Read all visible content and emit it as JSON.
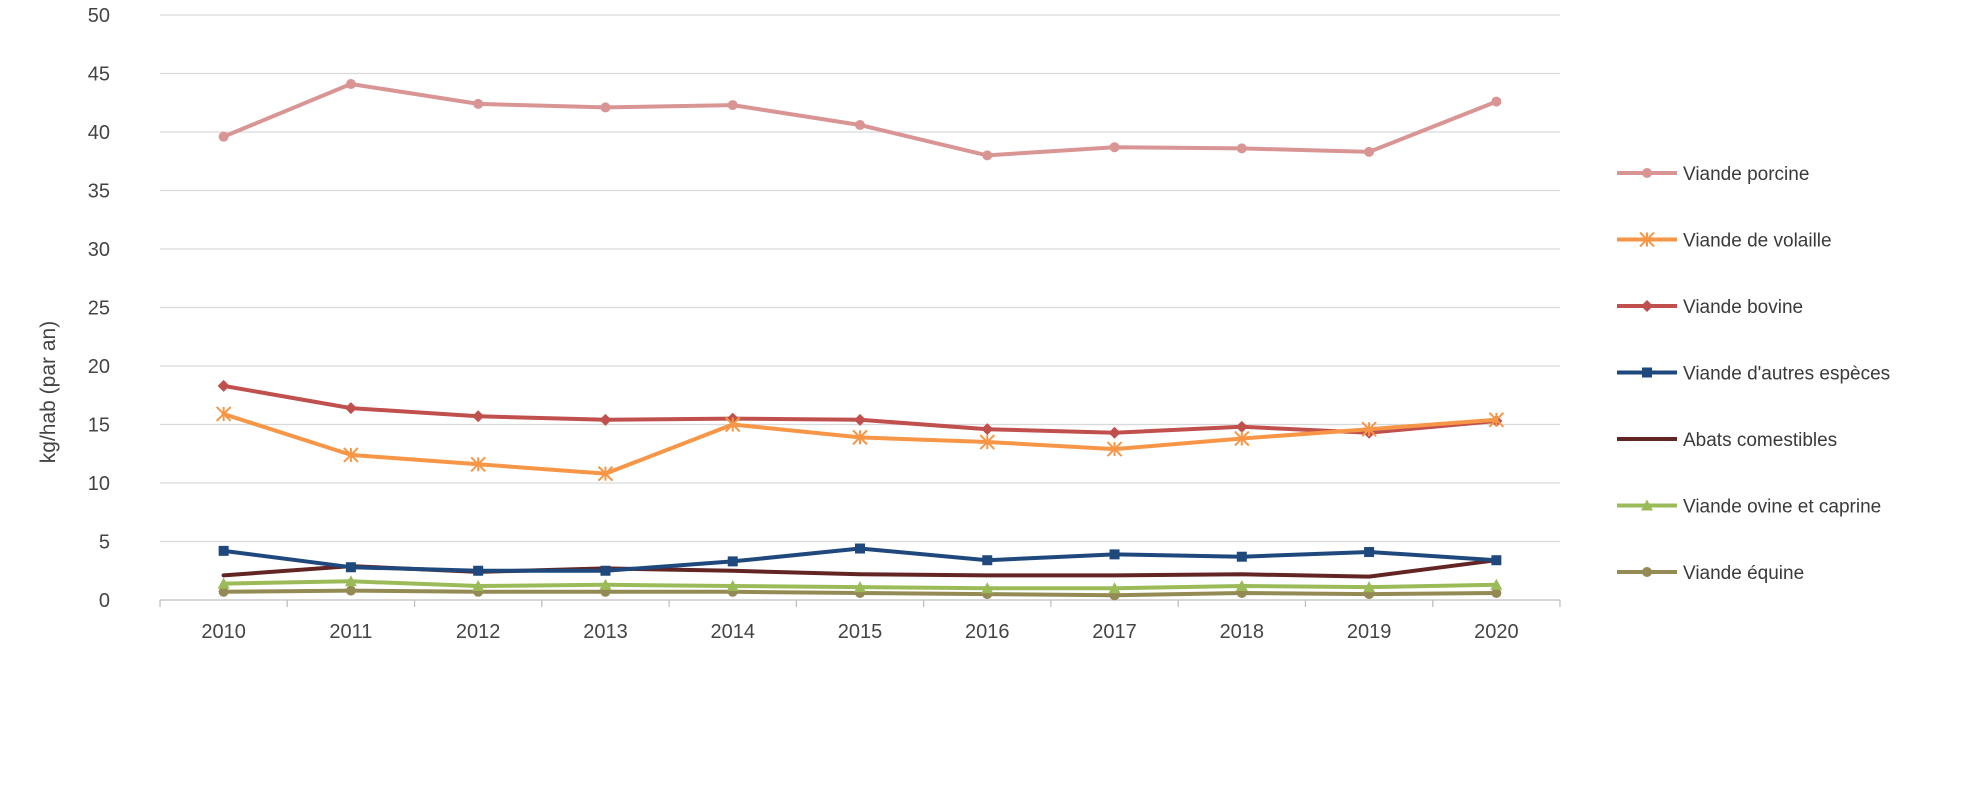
{
  "chart_data": {
    "type": "line",
    "title": "",
    "xlabel": "",
    "ylabel": "kg/hab (par an)",
    "ylim": [
      0,
      50
    ],
    "y_ticks": [
      0,
      5,
      10,
      15,
      20,
      25,
      30,
      35,
      40,
      45,
      50
    ],
    "categories": [
      "2010",
      "2011",
      "2012",
      "2013",
      "2014",
      "2015",
      "2016",
      "2017",
      "2018",
      "2019",
      "2020"
    ],
    "grid": "horizontal",
    "legend_position": "right",
    "series": [
      {
        "name": "Viande porcine",
        "color": "#D99594",
        "marker": "circle",
        "values": [
          39.6,
          44.1,
          42.4,
          42.1,
          42.3,
          40.6,
          38.0,
          38.7,
          38.6,
          38.3,
          42.6
        ]
      },
      {
        "name": "Viande de volaille",
        "color": "#F79646",
        "marker": "star",
        "values": [
          15.9,
          12.4,
          11.6,
          10.8,
          15.0,
          13.9,
          13.5,
          12.9,
          13.8,
          14.6,
          15.4
        ]
      },
      {
        "name": "Viande bovine",
        "color": "#C0504D",
        "marker": "diamond",
        "values": [
          18.3,
          16.4,
          15.7,
          15.4,
          15.5,
          15.4,
          14.6,
          14.3,
          14.8,
          14.3,
          15.3
        ]
      },
      {
        "name": "Viande d'autres espèces",
        "color": "#1F497D",
        "marker": "square",
        "values": [
          4.2,
          2.8,
          2.5,
          2.5,
          3.3,
          4.4,
          3.4,
          3.9,
          3.7,
          4.1,
          3.4
        ]
      },
      {
        "name": "Abats comestibles",
        "color": "#632523",
        "marker": "none",
        "values": [
          2.1,
          2.9,
          2.4,
          2.7,
          2.5,
          2.2,
          2.1,
          2.1,
          2.2,
          2.0,
          3.4
        ]
      },
      {
        "name": "Viande ovine et caprine",
        "color": "#9BBB59",
        "marker": "triangle",
        "values": [
          1.4,
          1.6,
          1.2,
          1.3,
          1.2,
          1.1,
          1.0,
          1.0,
          1.2,
          1.1,
          1.3
        ]
      },
      {
        "name": "Viande équine",
        "color": "#948A54",
        "marker": "circle",
        "values": [
          0.7,
          0.8,
          0.7,
          0.7,
          0.7,
          0.6,
          0.5,
          0.4,
          0.6,
          0.5,
          0.6
        ]
      }
    ]
  }
}
